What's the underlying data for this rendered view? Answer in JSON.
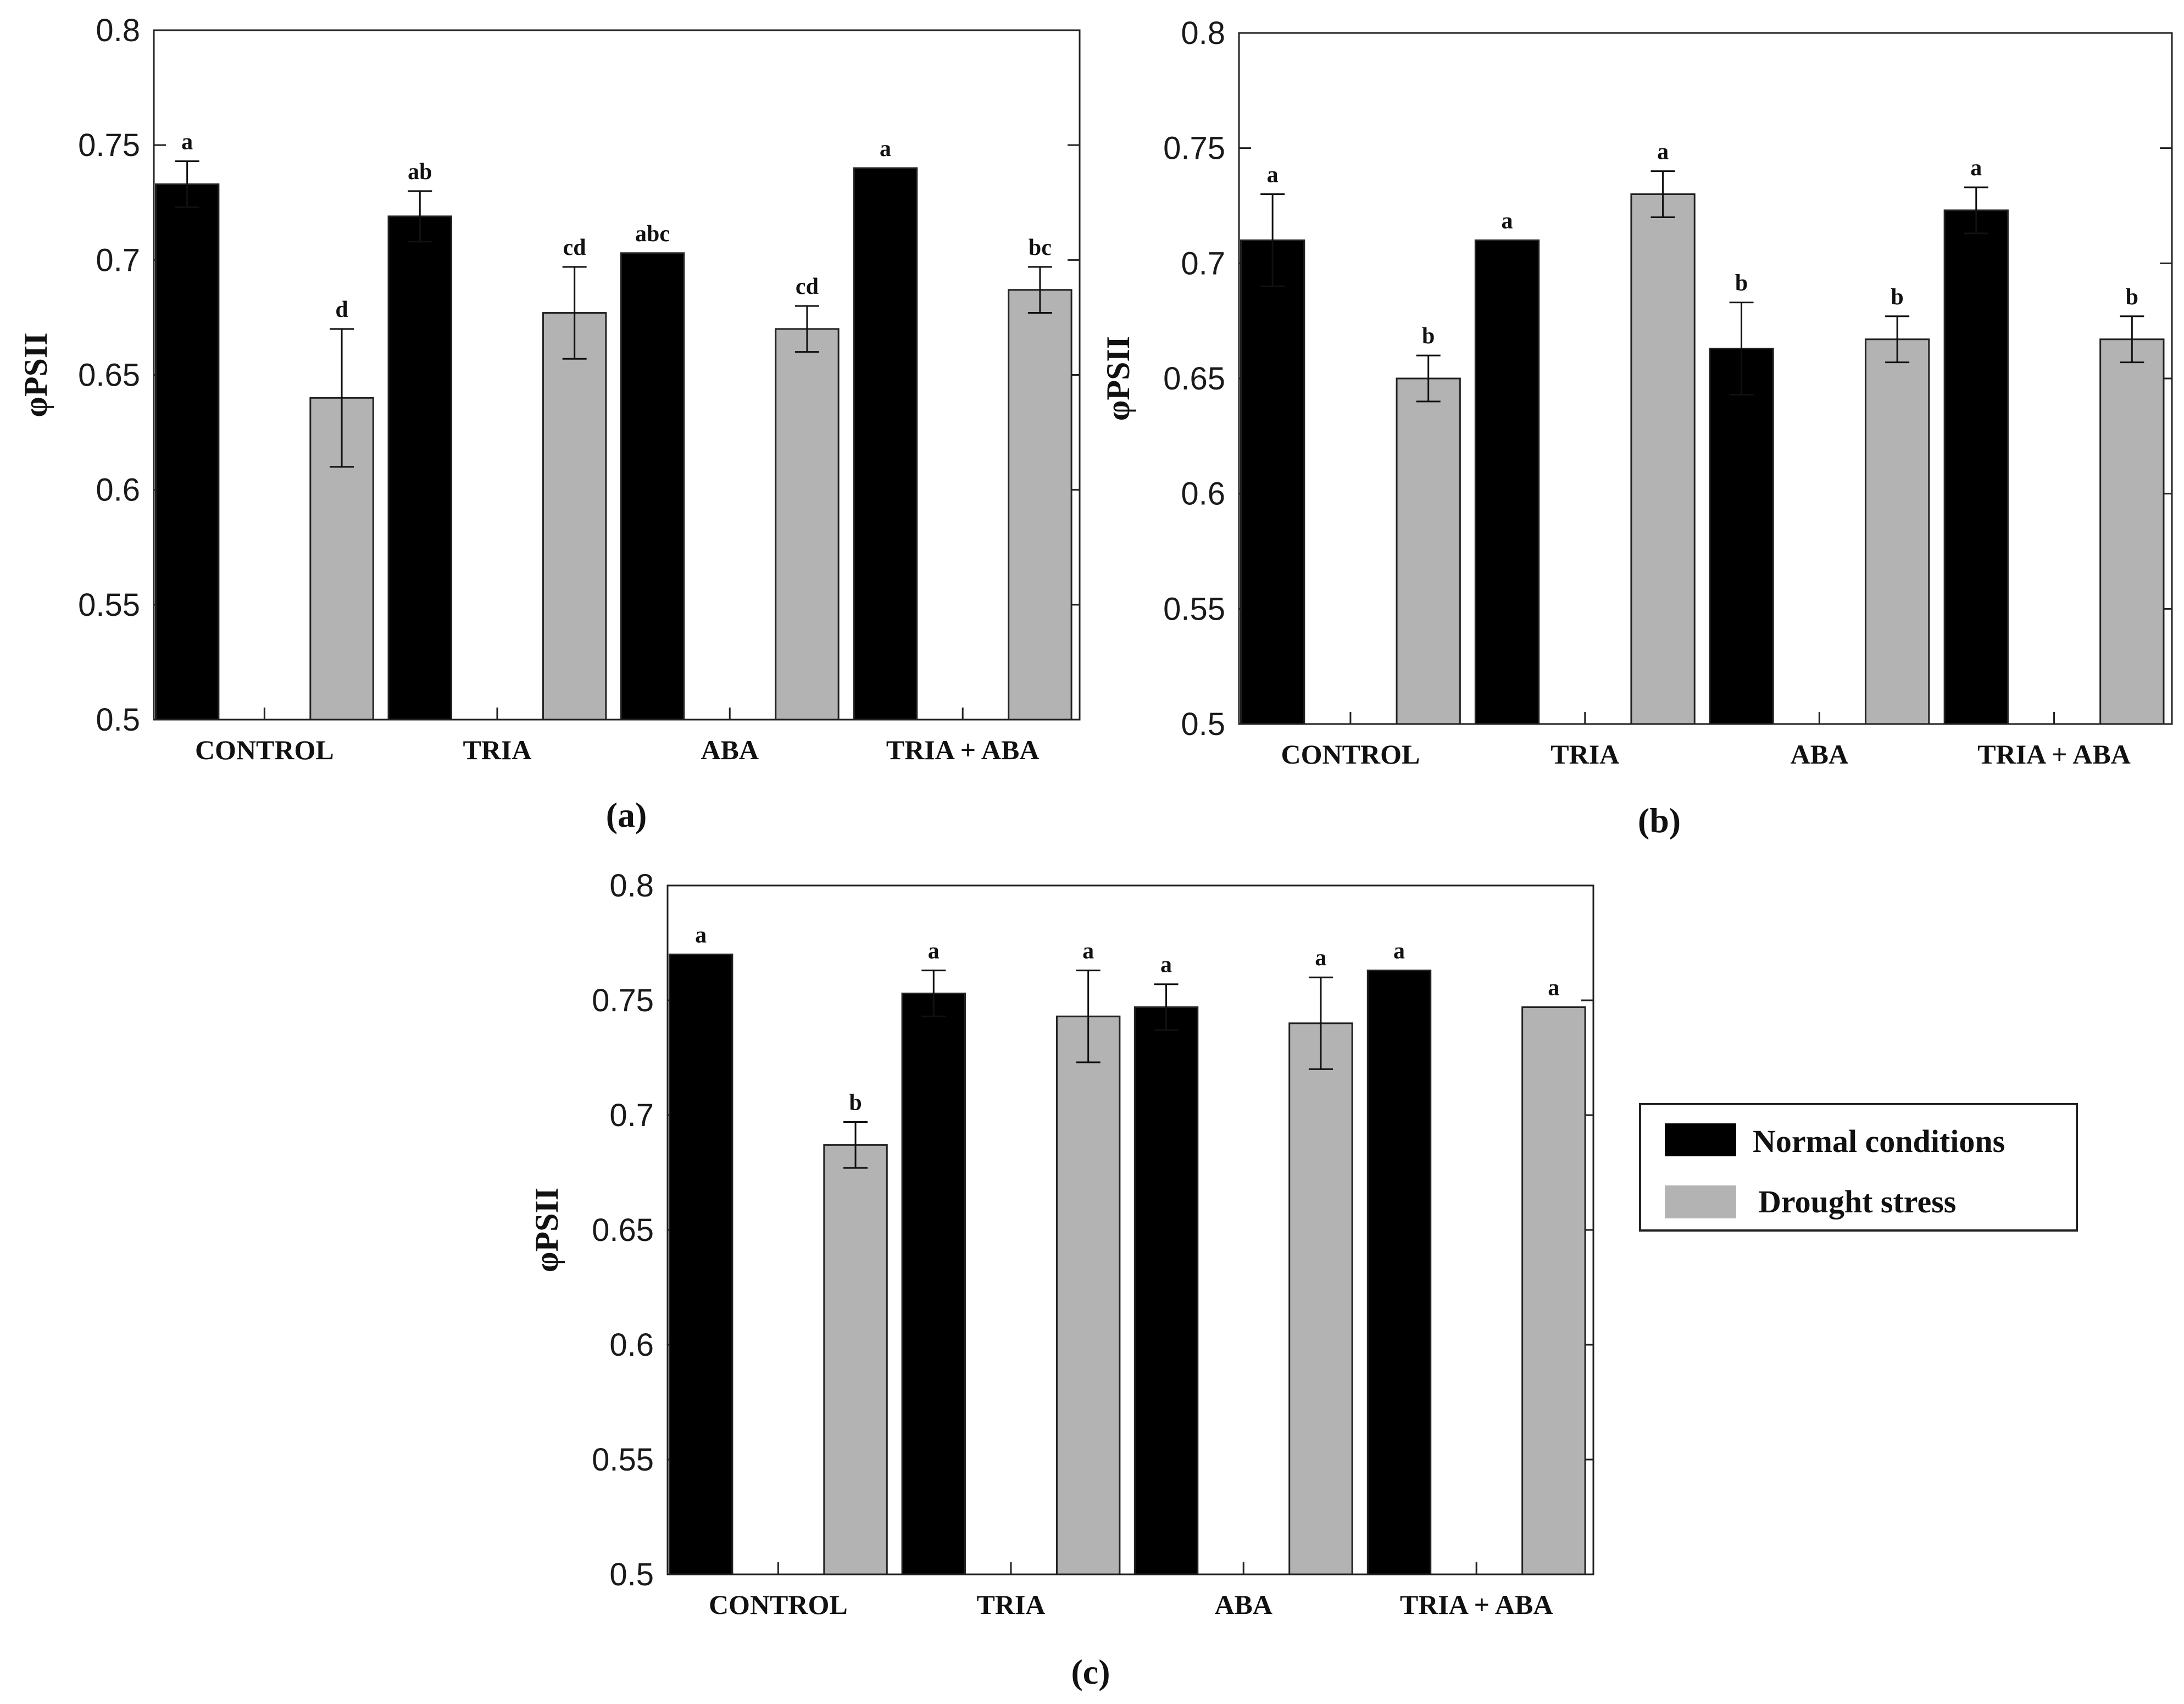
{
  "chart_data": [
    {
      "type": "bar",
      "panel_label": "(a)",
      "ylabel": "φPSII",
      "ylim": [
        0.5,
        0.8
      ],
      "yticks": [
        "0.5",
        "0.55",
        "0.6",
        "0.65",
        "0.7",
        "0.75",
        "0.8"
      ],
      "categories": [
        "CONTROL",
        "TRIA",
        "ABA",
        "TRIA + ABA"
      ],
      "series": [
        {
          "name": "Normal conditions",
          "values": [
            0.733,
            0.719,
            0.703,
            0.74
          ],
          "errors": [
            0.01,
            0.011,
            0,
            0
          ],
          "letters": [
            "a",
            "ab",
            "abc",
            "a"
          ]
        },
        {
          "name": "Drought stress",
          "values": [
            0.64,
            0.677,
            0.67,
            0.687
          ],
          "errors": [
            0.03,
            0.02,
            0.01,
            0.01
          ],
          "letters": [
            "d",
            "cd",
            "cd",
            "bc"
          ]
        }
      ]
    },
    {
      "type": "bar",
      "panel_label": "(b)",
      "ylabel": "φPSII",
      "ylim": [
        0.5,
        0.8
      ],
      "yticks": [
        "0.5",
        "0.55",
        "0.6",
        "0.65",
        "0.7",
        "0.75",
        "0.8"
      ],
      "categories": [
        "CONTROL",
        "TRIA",
        "ABA",
        "TRIA + ABA"
      ],
      "series": [
        {
          "name": "Normal conditions",
          "values": [
            0.71,
            0.71,
            0.663,
            0.723
          ],
          "errors": [
            0.02,
            0,
            0.02,
            0.01
          ],
          "letters": [
            "a",
            "a",
            "b",
            "a"
          ]
        },
        {
          "name": "Drought stress",
          "values": [
            0.65,
            0.73,
            0.667,
            0.667
          ],
          "errors": [
            0.01,
            0.01,
            0.01,
            0.01
          ],
          "letters": [
            "b",
            "a",
            "b",
            "b"
          ]
        }
      ]
    },
    {
      "type": "bar",
      "panel_label": "(c)",
      "ylabel": "φPSII",
      "ylim": [
        0.5,
        0.8
      ],
      "yticks": [
        "0.5",
        "0.55",
        "0.6",
        "0.65",
        "0.7",
        "0.75",
        "0.8"
      ],
      "categories": [
        "CONTROL",
        "TRIA",
        "ABA",
        "TRIA + ABA"
      ],
      "series": [
        {
          "name": "Normal conditions",
          "values": [
            0.77,
            0.753,
            0.747,
            0.763
          ],
          "errors": [
            0,
            0.01,
            0.01,
            0
          ],
          "letters": [
            "a",
            "a",
            "a",
            "a"
          ]
        },
        {
          "name": "Drought stress",
          "values": [
            0.687,
            0.743,
            0.74,
            0.747
          ],
          "errors": [
            0.01,
            0.02,
            0.02,
            0
          ],
          "letters": [
            "b",
            "a",
            "a",
            "a"
          ]
        }
      ]
    }
  ],
  "legend": {
    "items": [
      {
        "label": "Normal conditions",
        "color": "#000000"
      },
      {
        "label": "Drought stress",
        "color": "#b3b3b3"
      }
    ]
  },
  "colors": {
    "normal": "#000000",
    "drought": "#b3b3b3",
    "axis": "#222222"
  }
}
